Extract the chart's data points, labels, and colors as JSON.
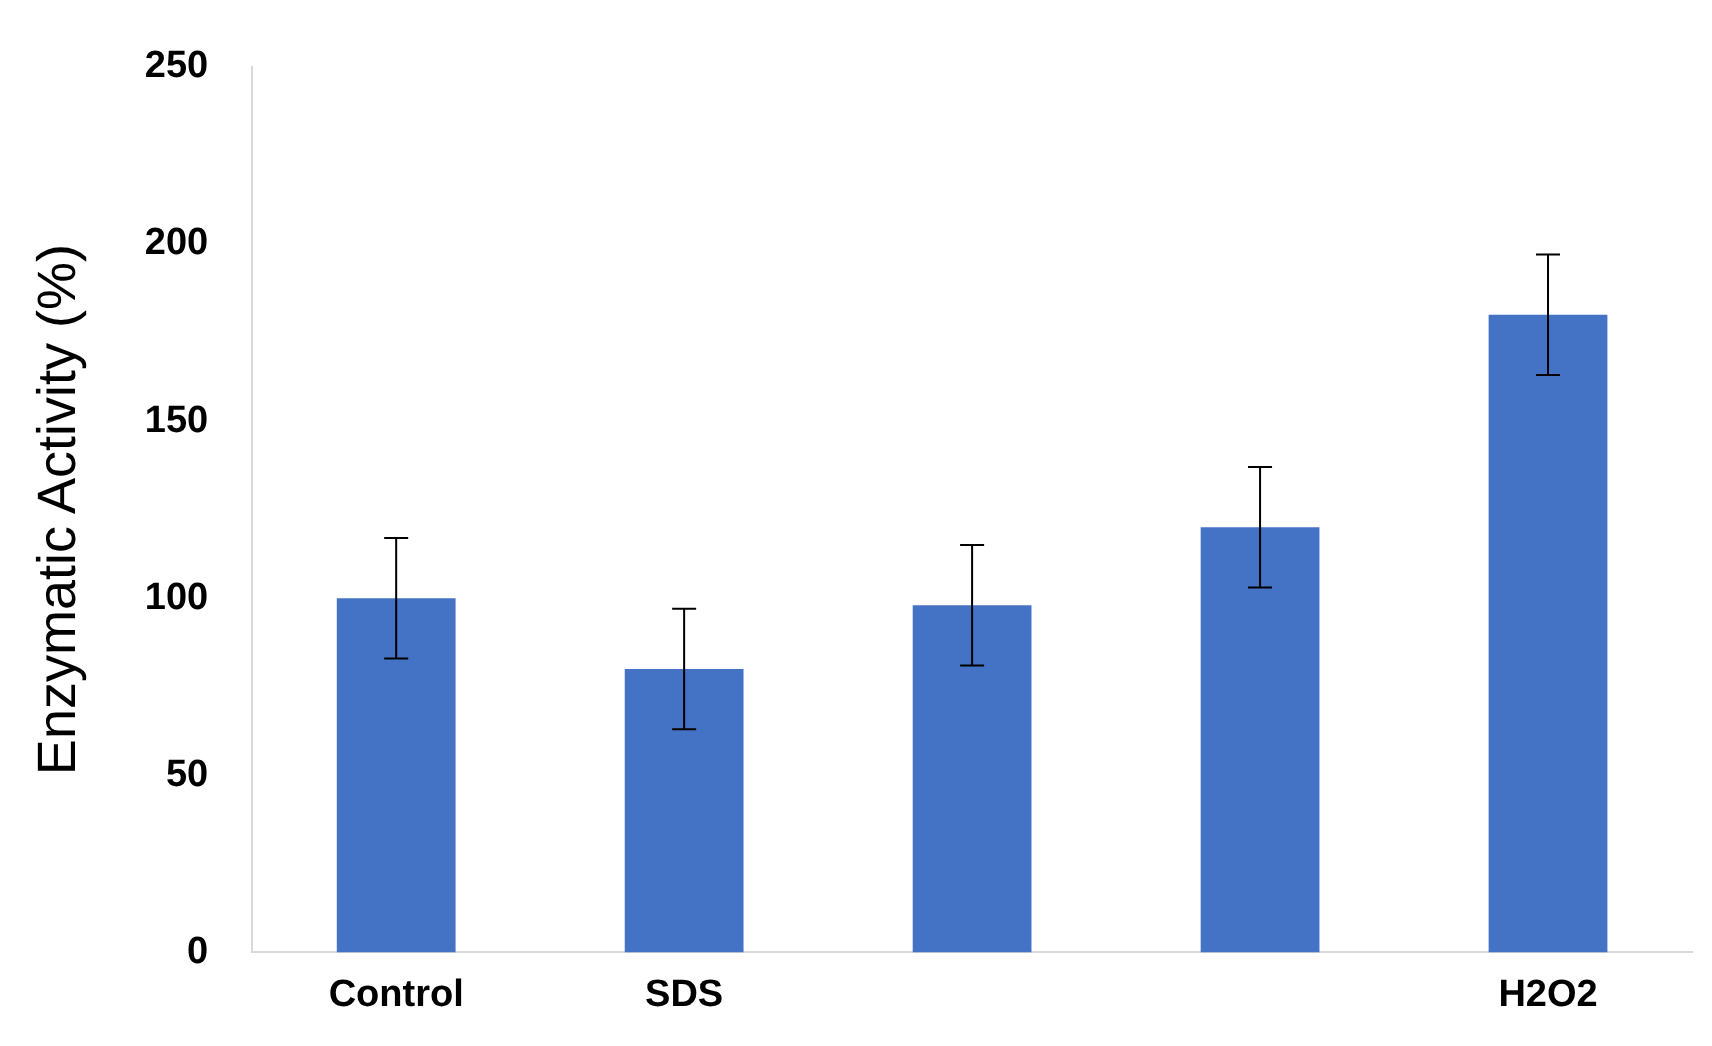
{
  "chart_data": {
    "type": "bar",
    "ylabel": "Enzymatic Activity (%)",
    "categories": [
      "Control",
      "SDS",
      null,
      null,
      "H2O2"
    ],
    "values": [
      100,
      80,
      98,
      120,
      180
    ],
    "errors": [
      17,
      17,
      17,
      17,
      17
    ],
    "color": "#4472c4",
    "ylim": [
      0,
      250
    ],
    "yticks": [
      0,
      50,
      100,
      150,
      200,
      250
    ],
    "grid": false,
    "legend": false
  }
}
